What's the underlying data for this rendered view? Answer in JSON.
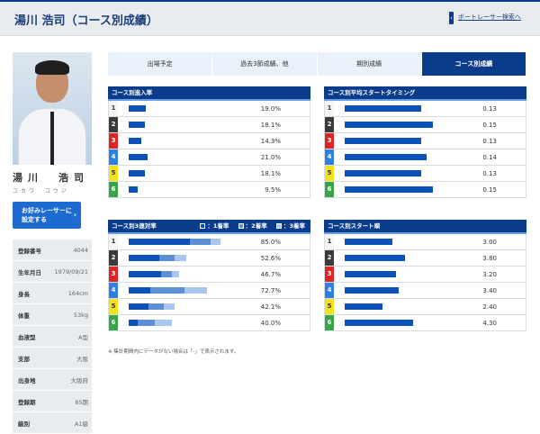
{
  "header": {
    "title": "湯川 浩司（コース別成績）",
    "back_link": "ボートレーサー検索へ",
    "back_icon": "chevron-left"
  },
  "racer": {
    "name": "湯川　浩司",
    "kana": "ユカワ　コウジ",
    "favorite_button": {
      "line1": "お好みレーサーに",
      "line2": "設定する",
      "icon": "chevron-right"
    },
    "profile": [
      {
        "label": "登録番号",
        "value": "4044"
      },
      {
        "label": "生年月日",
        "value": "1979/09/21"
      },
      {
        "label": "身長",
        "value": "164cm"
      },
      {
        "label": "体重",
        "value": "53kg"
      },
      {
        "label": "血液型",
        "value": "A型"
      },
      {
        "label": "支部",
        "value": "大阪"
      },
      {
        "label": "出身地",
        "value": "大阪府"
      },
      {
        "label": "登録期",
        "value": "85期"
      },
      {
        "label": "級別",
        "value": "A1級"
      }
    ]
  },
  "tabs": [
    {
      "label": "出場予定",
      "active": false
    },
    {
      "label": "過去3節成績、他",
      "active": false
    },
    {
      "label": "期別成績",
      "active": false
    },
    {
      "label": "コース別成績",
      "active": true
    }
  ],
  "lane_colors": {
    "1": {
      "bg": "#f4f4f4",
      "fg": "#333333"
    },
    "2": {
      "bg": "#3a3a3a",
      "fg": "#ffffff"
    },
    "3": {
      "bg": "#e02424",
      "fg": "#ffffff"
    },
    "4": {
      "bg": "#2f7fe0",
      "fg": "#ffffff"
    },
    "5": {
      "bg": "#f1e11e",
      "fg": "#333333"
    },
    "6": {
      "bg": "#3aa548",
      "fg": "#ffffff"
    }
  },
  "colors": {
    "bar1": "#0b52b8",
    "bar2": "#5c8fd6",
    "bar3": "#a9c7ee"
  },
  "panels": {
    "entry_rate": {
      "title": "コース別進入率",
      "rows": [
        {
          "lane": "1",
          "value": 19.0,
          "label": "19.0%"
        },
        {
          "lane": "2",
          "value": 18.1,
          "label": "18.1%"
        },
        {
          "lane": "3",
          "value": 14.3,
          "label": "14.3%"
        },
        {
          "lane": "4",
          "value": 21.0,
          "label": "21.0%"
        },
        {
          "lane": "5",
          "value": 18.1,
          "label": "18.1%"
        },
        {
          "lane": "6",
          "value": 9.5,
          "label": "9.5%"
        }
      ]
    },
    "avg_st_timing": {
      "title": "コース別平均スタートタイミング",
      "rows": [
        {
          "lane": "1",
          "value": 0.13,
          "label": "0.13"
        },
        {
          "lane": "2",
          "value": 0.15,
          "label": "0.15"
        },
        {
          "lane": "3",
          "value": 0.13,
          "label": "0.13"
        },
        {
          "lane": "4",
          "value": 0.14,
          "label": "0.14"
        },
        {
          "lane": "5",
          "value": 0.13,
          "label": "0.13"
        },
        {
          "lane": "6",
          "value": 0.15,
          "label": "0.15"
        }
      ]
    },
    "rentai_rate": {
      "title": "コース別3連対率",
      "legend": [
        "：1着率",
        "：2着率",
        "：3着率"
      ],
      "rows": [
        {
          "lane": "1",
          "segments": [
            57,
            19,
            9
          ],
          "label": "85.0%"
        },
        {
          "lane": "2",
          "segments": [
            28,
            14,
            10.6
          ],
          "label": "52.6%"
        },
        {
          "lane": "3",
          "segments": [
            30,
            10,
            6.7
          ],
          "label": "46.7%"
        },
        {
          "lane": "4",
          "segments": [
            20,
            32,
            20.7
          ],
          "label": "72.7%"
        },
        {
          "lane": "5",
          "segments": [
            18,
            14,
            10.1
          ],
          "label": "42.1%"
        },
        {
          "lane": "6",
          "segments": [
            8,
            16,
            16
          ],
          "label": "40.0%"
        }
      ]
    },
    "start_order": {
      "title": "コース別スタート順",
      "rows": [
        {
          "lane": "1",
          "value": 3.0,
          "label": "3.00"
        },
        {
          "lane": "2",
          "value": 3.8,
          "label": "3.80"
        },
        {
          "lane": "3",
          "value": 3.2,
          "label": "3.20"
        },
        {
          "lane": "4",
          "value": 3.4,
          "label": "3.40"
        },
        {
          "lane": "5",
          "value": 2.4,
          "label": "2.40"
        },
        {
          "lane": "6",
          "value": 4.3,
          "label": "4.30"
        }
      ]
    }
  },
  "note": "※ 集計期間内にデータがない場合は「-」で表示されます。"
}
